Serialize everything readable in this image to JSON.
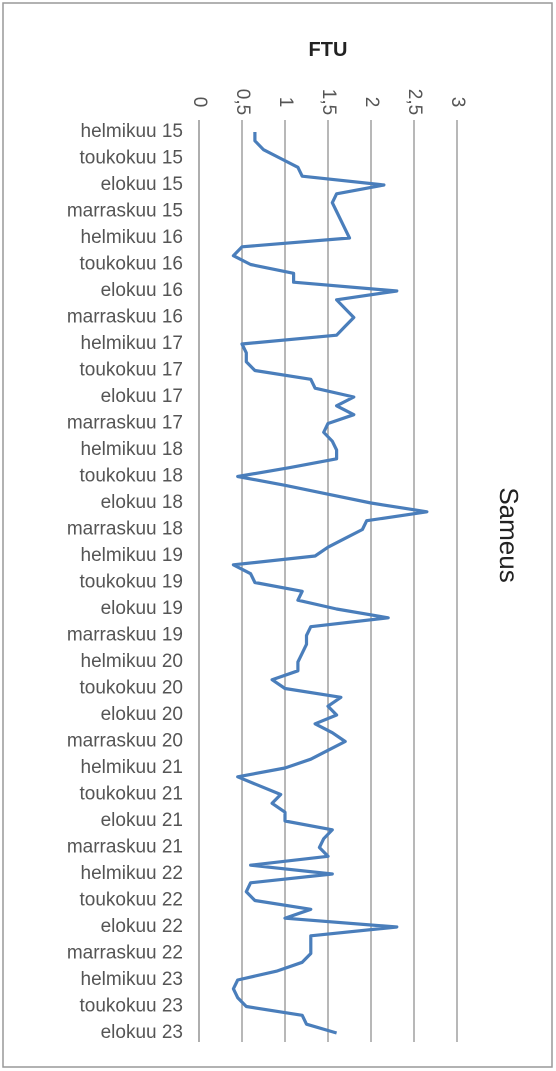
{
  "chart_data": {
    "type": "line",
    "title": "Sameus",
    "x_label": "FTU",
    "categories": [
      "helmikuu 15",
      null,
      null,
      "toukokuu 15",
      null,
      null,
      "elokuu 15",
      null,
      null,
      "marraskuu 15",
      null,
      null,
      "helmikuu 16",
      null,
      null,
      "toukokuu 16",
      null,
      null,
      "elokuu 16",
      null,
      null,
      "marraskuu 16",
      null,
      null,
      "helmikuu 17",
      null,
      null,
      "toukokuu 17",
      null,
      null,
      "elokuu 17",
      null,
      null,
      "marraskuu 17",
      null,
      null,
      "helmikuu 18",
      null,
      null,
      "toukokuu 18",
      null,
      null,
      "elokuu 18",
      null,
      null,
      "marraskuu 18",
      null,
      null,
      "helmikuu 19",
      null,
      null,
      "toukokuu 19",
      null,
      null,
      "elokuu 19",
      null,
      null,
      "marraskuu 19",
      null,
      null,
      "helmikuu 20",
      null,
      null,
      "toukokuu 20",
      null,
      null,
      "elokuu 20",
      null,
      null,
      "marraskuu 20",
      null,
      null,
      "helmikuu 21",
      null,
      null,
      "toukokuu 21",
      null,
      null,
      "elokuu 21",
      null,
      null,
      "marraskuu 21",
      null,
      null,
      "helmikuu 22",
      null,
      null,
      "toukokuu 22",
      null,
      null,
      "elokuu 22",
      null,
      null,
      "marraskuu 22",
      null,
      null,
      "helmikuu 23",
      null,
      null,
      "toukokuu 23",
      null,
      null,
      "elokuu 23"
    ],
    "values": [
      0.65,
      0.65,
      0.75,
      0.95,
      1.15,
      1.2,
      2.15,
      1.6,
      1.55,
      1.6,
      1.65,
      1.7,
      1.75,
      0.5,
      0.4,
      0.6,
      1.1,
      1.1,
      2.3,
      1.6,
      1.7,
      1.8,
      1.7,
      1.6,
      0.5,
      0.55,
      0.55,
      0.65,
      1.3,
      1.35,
      1.8,
      1.6,
      1.8,
      1.5,
      1.45,
      1.55,
      1.6,
      1.6,
      1.05,
      0.45,
      1.0,
      1.5,
      2.0,
      2.65,
      1.95,
      1.9,
      1.7,
      1.5,
      1.35,
      0.4,
      0.6,
      0.65,
      1.2,
      1.15,
      1.6,
      2.2,
      1.3,
      1.25,
      1.25,
      1.2,
      1.15,
      1.15,
      0.85,
      1.0,
      1.65,
      1.5,
      1.6,
      1.35,
      1.55,
      1.7,
      1.5,
      1.3,
      1.0,
      0.45,
      0.7,
      0.95,
      0.85,
      1.0,
      1.0,
      1.55,
      1.45,
      1.4,
      1.5,
      0.6,
      1.55,
      0.6,
      0.55,
      0.65,
      1.3,
      1.0,
      2.3,
      1.3,
      1.3,
      1.3,
      1.2,
      0.9,
      0.45,
      0.4,
      0.45,
      0.55,
      1.2,
      1.25,
      1.6
    ],
    "color": "#4a7ebb",
    "xlim": [
      0,
      3
    ],
    "xticks": [
      0,
      {
        "value": 0.5,
        "label": "0,5"
      },
      1,
      {
        "value": 1.5,
        "label": "1,5"
      },
      2,
      {
        "value": 2.5,
        "label": "2,5"
      },
      3
    ],
    "grid": true
  }
}
